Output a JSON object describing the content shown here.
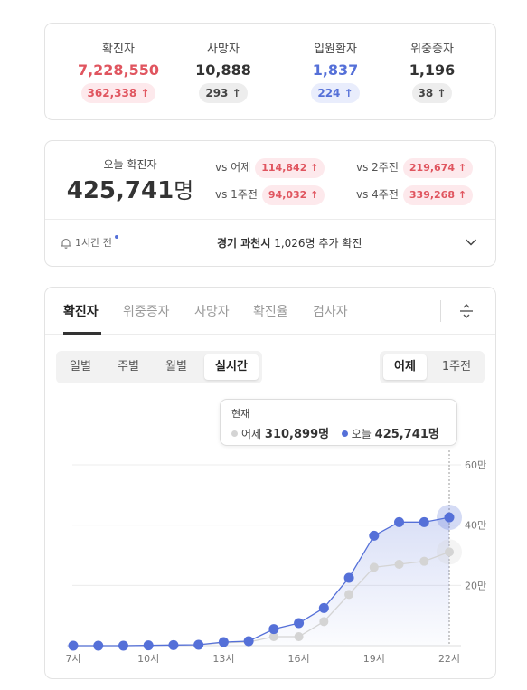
{
  "summary": {
    "stats": [
      {
        "label": "확진자",
        "value": "7,228,550",
        "delta": "362,338 ↑",
        "tone": "red"
      },
      {
        "label": "사망자",
        "value": "10,888",
        "delta": "293 ↑",
        "tone": "gray"
      },
      {
        "label": "입원환자",
        "value": "1,837",
        "delta": "224 ↑",
        "tone": "blue"
      },
      {
        "label": "위중증자",
        "value": "1,196",
        "delta": "38 ↑",
        "tone": "gray"
      }
    ]
  },
  "today": {
    "label": "오늘 확진자",
    "number": "425,741",
    "unit": "명",
    "comparisons": [
      {
        "label": "vs 어제",
        "value": "114,842 ↑"
      },
      {
        "label": "vs 2주전",
        "value": "219,674 ↑"
      },
      {
        "label": "vs 1주전",
        "value": "94,032 ↑"
      },
      {
        "label": "vs 4주전",
        "value": "339,268 ↑"
      }
    ],
    "alert_time": "1시간 전",
    "alert_region": "경기 과천시",
    "alert_rest": " 1,026명 추가 확진"
  },
  "tabs": [
    "확진자",
    "위중증자",
    "사망자",
    "확진율",
    "검사자"
  ],
  "period_buttons": [
    "일별",
    "주별",
    "월별",
    "실시간"
  ],
  "compare_buttons": [
    "어제",
    "1주전"
  ],
  "tooltip": {
    "title": "현재",
    "yesterday_label": "어제",
    "yesterday_value": "310,899명",
    "today_label": "오늘",
    "today_value": "425,741명"
  },
  "colors": {
    "red": "#e0555f",
    "blue": "#5570d8",
    "gray_series": "#d4d4d4"
  },
  "chart_data": {
    "type": "line",
    "x": [
      "7시",
      "8시",
      "9시",
      "10시",
      "11시",
      "12시",
      "13시",
      "14시",
      "15시",
      "16시",
      "17시",
      "18시",
      "19시",
      "20시",
      "21시",
      "22시"
    ],
    "xticks": [
      "7시",
      "10시",
      "13시",
      "16시",
      "19시",
      "22시"
    ],
    "yticks": [
      "20만",
      "40만",
      "60만"
    ],
    "ylim": [
      0,
      600000
    ],
    "series": [
      {
        "name": "오늘",
        "color": "#5570d8",
        "values": [
          0,
          0,
          0,
          1000,
          2000,
          3000,
          12000,
          15000,
          55000,
          75000,
          125000,
          225000,
          365000,
          410000,
          410000,
          425741
        ]
      },
      {
        "name": "어제",
        "color": "#d4d4d4",
        "values": [
          0,
          0,
          0,
          1000,
          2000,
          3000,
          10000,
          12000,
          30000,
          30000,
          80000,
          170000,
          260000,
          270000,
          280000,
          310899
        ]
      }
    ]
  }
}
